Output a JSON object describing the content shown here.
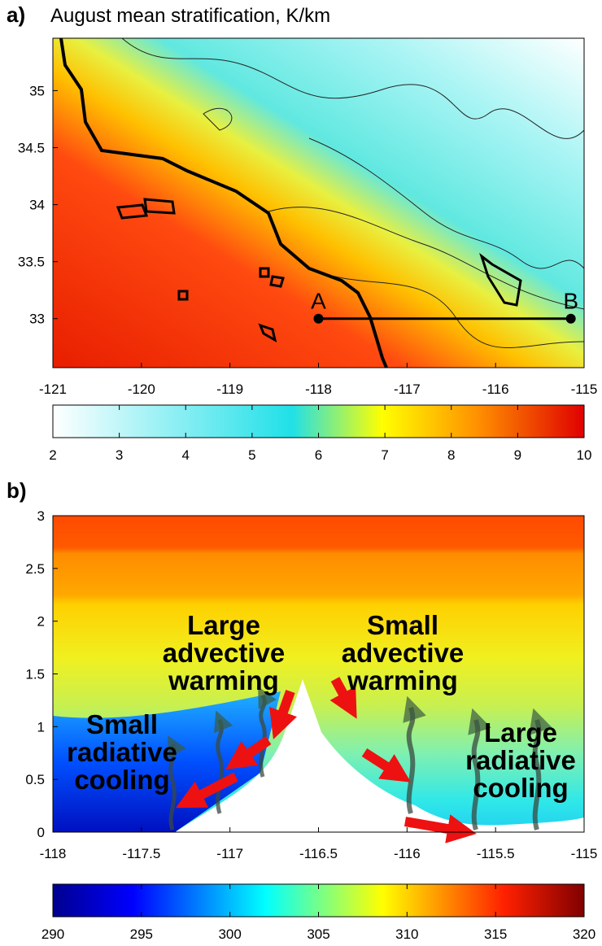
{
  "chart_data": [
    {
      "type": "map",
      "panel": "a)",
      "title": "August mean stratification, K/km",
      "xlim": [
        -121,
        -115
      ],
      "ylim": [
        32.57,
        35.46
      ],
      "xticks": [
        -121,
        -120,
        -119,
        -118,
        -117,
        -116,
        -115
      ],
      "yticks": [
        33,
        33.5,
        34,
        34.5,
        35
      ],
      "points": [
        {
          "label": "A",
          "x": -118,
          "y": 33
        },
        {
          "label": "B",
          "x": -115.15,
          "y": 33
        }
      ],
      "colorbar": {
        "lim": [
          2,
          10
        ],
        "ticks": [
          2,
          3,
          4,
          5,
          6,
          7,
          8,
          9,
          10
        ]
      }
    },
    {
      "type": "cross-section",
      "panel": "b)",
      "xlim": [
        -118,
        -115
      ],
      "ylim": [
        0,
        3
      ],
      "xticks": [
        -118,
        -117.5,
        -117,
        -116.5,
        -116,
        -115.5,
        -115
      ],
      "yticks": [
        0,
        0.5,
        1,
        1.5,
        2,
        2.5,
        3
      ],
      "annotations": [
        {
          "lines": [
            "Large",
            "advective",
            "warming"
          ]
        },
        {
          "lines": [
            "Small",
            "advective",
            "warming"
          ]
        },
        {
          "lines": [
            "Small",
            "radiative",
            "cooling"
          ]
        },
        {
          "lines": [
            "Large",
            "radiative",
            "cooling"
          ]
        }
      ],
      "colorbar": {
        "lim": [
          290,
          320
        ],
        "ticks": [
          290,
          295,
          300,
          305,
          310,
          315,
          320
        ]
      }
    }
  ]
}
